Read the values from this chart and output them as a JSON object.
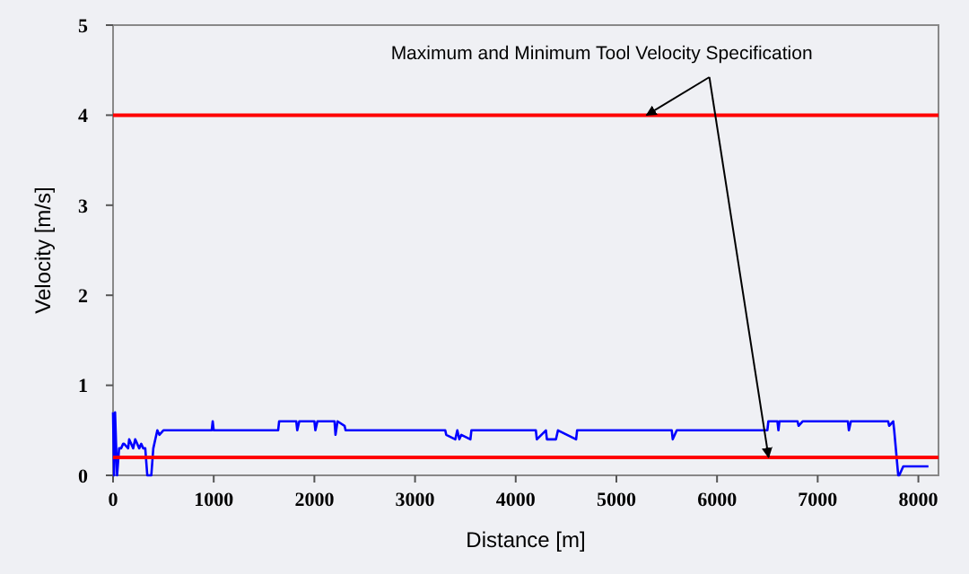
{
  "chart_data": {
    "type": "line",
    "xlabel": "Distance [m]",
    "ylabel": "Velocity [m/s]",
    "xlim": [
      0,
      8200
    ],
    "ylim": [
      0,
      5
    ],
    "xticks": [
      0,
      1000,
      2000,
      3000,
      4000,
      5000,
      6000,
      7000,
      8000
    ],
    "yticks": [
      0,
      1,
      2,
      3,
      4,
      5
    ],
    "grid": false,
    "line_style": "solid",
    "marker": "none",
    "series": [
      {
        "color": "#0000ff",
        "x": [
          0,
          10,
          20,
          40,
          60,
          80,
          100,
          110,
          150,
          160,
          200,
          220,
          260,
          280,
          300,
          320,
          340,
          360,
          380,
          400,
          420,
          440,
          460,
          500,
          980,
          990,
          1000,
          1010,
          1640,
          1650,
          1820,
          1830,
          1850,
          1860,
          2000,
          2010,
          2030,
          2200,
          2210,
          2230,
          2300,
          2310,
          3300,
          3310,
          3400,
          3420,
          3440,
          3460,
          3550,
          3560,
          4200,
          4210,
          4300,
          4310,
          4400,
          4420,
          4600,
          4610,
          5550,
          5560,
          5600,
          5610,
          5900,
          5910,
          6500,
          6510,
          6600,
          6610,
          6620,
          6800,
          6810,
          6850,
          7300,
          7310,
          7330,
          7700,
          7710,
          7750,
          7760,
          7800,
          7810,
          7850,
          8100
        ],
        "values": [
          0.7,
          0,
          0.7,
          0,
          0.3,
          0.3,
          0.35,
          0.35,
          0.3,
          0.4,
          0.3,
          0.4,
          0.3,
          0.35,
          0.3,
          0.3,
          0,
          0,
          0,
          0.3,
          0.4,
          0.5,
          0.45,
          0.5,
          0.5,
          0.6,
          0.5,
          0.5,
          0.5,
          0.6,
          0.6,
          0.5,
          0.6,
          0.6,
          0.6,
          0.5,
          0.6,
          0.6,
          0.45,
          0.6,
          0.55,
          0.5,
          0.5,
          0.45,
          0.4,
          0.5,
          0.4,
          0.45,
          0.4,
          0.5,
          0.5,
          0.4,
          0.5,
          0.4,
          0.4,
          0.5,
          0.4,
          0.5,
          0.5,
          0.4,
          0.5,
          0.5,
          0.5,
          0.5,
          0.5,
          0.6,
          0.6,
          0.5,
          0.6,
          0.6,
          0.55,
          0.6,
          0.6,
          0.5,
          0.6,
          0.6,
          0.55,
          0.6,
          0.5,
          0,
          0,
          0.1,
          0.1
        ]
      }
    ],
    "ref_lines": [
      {
        "axis": "y",
        "value": 4,
        "color": "#ff0000"
      },
      {
        "axis": "y",
        "value": 0.2,
        "color": "#ff0000"
      }
    ],
    "annotations": [
      {
        "text": "Maximum and Minimum Tool Velocity Specification",
        "x": 5300,
        "y": 4
      }
    ]
  }
}
